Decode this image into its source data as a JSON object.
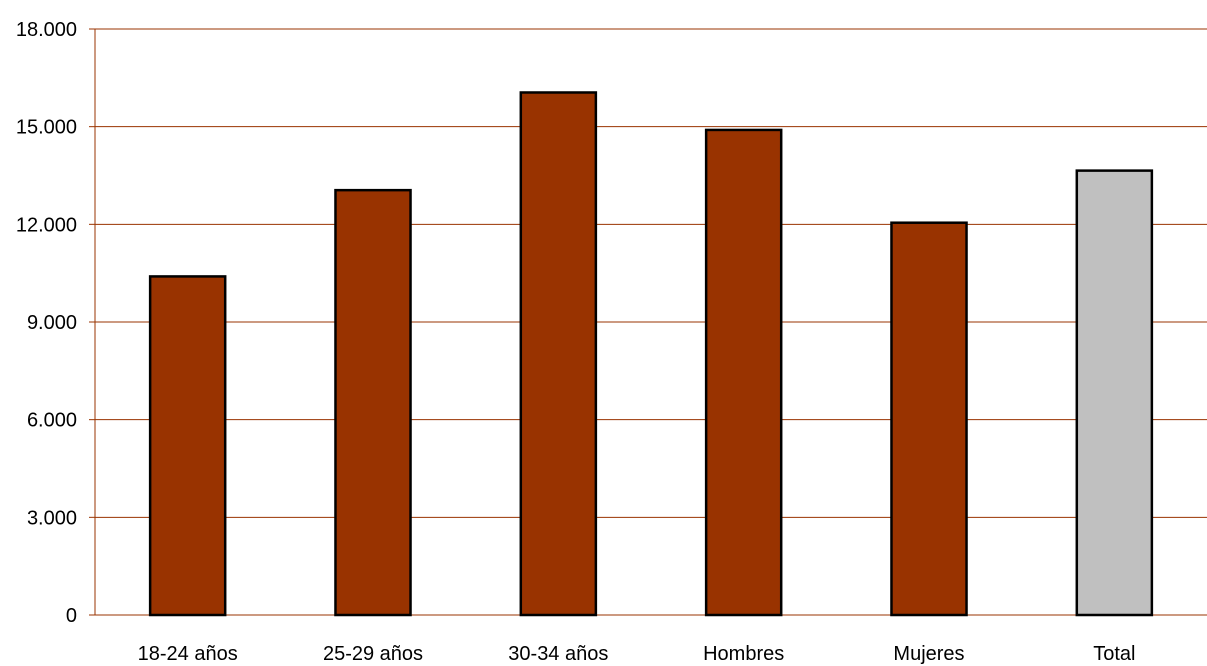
{
  "chart_data": {
    "type": "bar",
    "title": "",
    "xlabel": "",
    "ylabel": "",
    "categories": [
      "18-24 años",
      "25-29 años",
      "30-34 años",
      "Hombres",
      "Mujeres",
      "Total"
    ],
    "values": [
      10400,
      13050,
      16050,
      14900,
      12050,
      13650
    ],
    "ylim": [
      0,
      18000
    ],
    "yticks": [
      0,
      3000,
      6000,
      9000,
      12000,
      15000,
      18000
    ],
    "ytick_labels": [
      "0",
      "3.000",
      "6.000",
      "9.000",
      "12.000",
      "15.000",
      "18.000"
    ],
    "grid": true,
    "legend": "none",
    "colors": {
      "bar": "#993300",
      "highlight_bar": "#c0c0c0",
      "gridline": "#993300",
      "bar_outline": "#000000"
    },
    "highlight_index": 5
  }
}
